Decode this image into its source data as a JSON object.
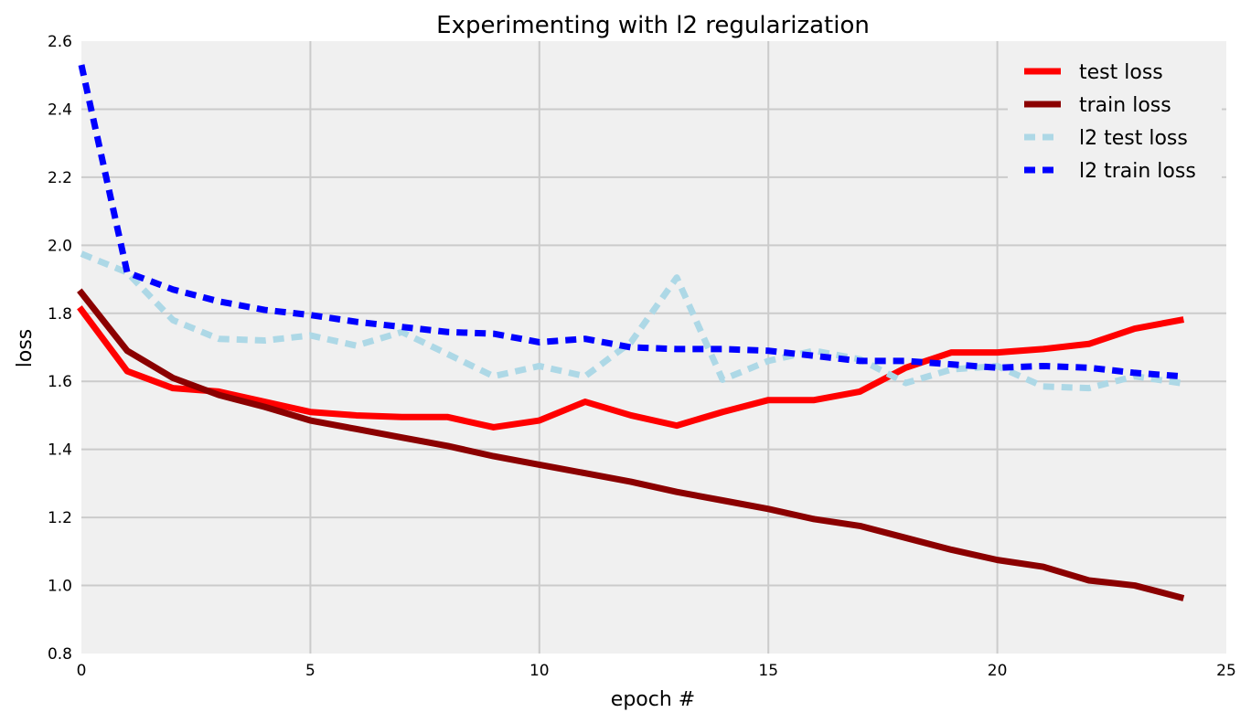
{
  "chart_data": {
    "type": "line",
    "title": "Experimenting with l2 regularization",
    "xlabel": "epoch #",
    "ylabel": "loss",
    "xlim": [
      0,
      25
    ],
    "ylim": [
      0.8,
      2.6
    ],
    "xticks": [
      0,
      5,
      10,
      15,
      20,
      25
    ],
    "xtick_labels": [
      "0",
      "5",
      "10",
      "15",
      "20",
      "25"
    ],
    "yticks": [
      0.8,
      1.0,
      1.2,
      1.4,
      1.6,
      1.8,
      2.0,
      2.2,
      2.4,
      2.6
    ],
    "ytick_labels": [
      "0.8",
      "1.0",
      "1.2",
      "1.4",
      "1.6",
      "1.8",
      "2.0",
      "2.2",
      "2.4",
      "2.6"
    ],
    "grid": true,
    "legend_position": "top-right",
    "background_color": "#f0f0f0",
    "grid_color": "#cbcbcb",
    "x": [
      0,
      1,
      2,
      3,
      4,
      5,
      6,
      7,
      8,
      9,
      10,
      11,
      12,
      13,
      14,
      15,
      16,
      17,
      18,
      19,
      20,
      21,
      22,
      23,
      24
    ],
    "series": [
      {
        "name": "test loss",
        "color": "#ff0000",
        "dashed": false,
        "values": [
          1.81,
          1.63,
          1.58,
          1.57,
          1.54,
          1.51,
          1.5,
          1.495,
          1.495,
          1.465,
          1.485,
          1.54,
          1.5,
          1.47,
          1.51,
          1.545,
          1.545,
          1.57,
          1.64,
          1.685,
          1.685,
          1.695,
          1.71,
          1.755,
          1.78
        ]
      },
      {
        "name": "train loss",
        "color": "#8b0000",
        "dashed": false,
        "values": [
          1.86,
          1.69,
          1.61,
          1.56,
          1.525,
          1.485,
          1.46,
          1.435,
          1.41,
          1.38,
          1.355,
          1.33,
          1.305,
          1.275,
          1.25,
          1.225,
          1.195,
          1.175,
          1.14,
          1.105,
          1.075,
          1.055,
          1.015,
          1.0,
          0.965
        ]
      },
      {
        "name": "l2 test loss",
        "color": "#add8e6",
        "dashed": true,
        "values": [
          1.975,
          1.92,
          1.78,
          1.725,
          1.72,
          1.735,
          1.705,
          1.745,
          1.68,
          1.615,
          1.645,
          1.615,
          1.715,
          1.905,
          1.605,
          1.66,
          1.69,
          1.665,
          1.595,
          1.635,
          1.645,
          1.585,
          1.58,
          1.615,
          1.595
        ]
      },
      {
        "name": "l2 train loss",
        "color": "#0000ff",
        "dashed": true,
        "values": [
          2.53,
          1.92,
          1.87,
          1.835,
          1.81,
          1.795,
          1.775,
          1.76,
          1.745,
          1.74,
          1.715,
          1.725,
          1.7,
          1.695,
          1.695,
          1.69,
          1.675,
          1.66,
          1.66,
          1.65,
          1.64,
          1.645,
          1.64,
          1.625,
          1.615
        ]
      }
    ]
  }
}
